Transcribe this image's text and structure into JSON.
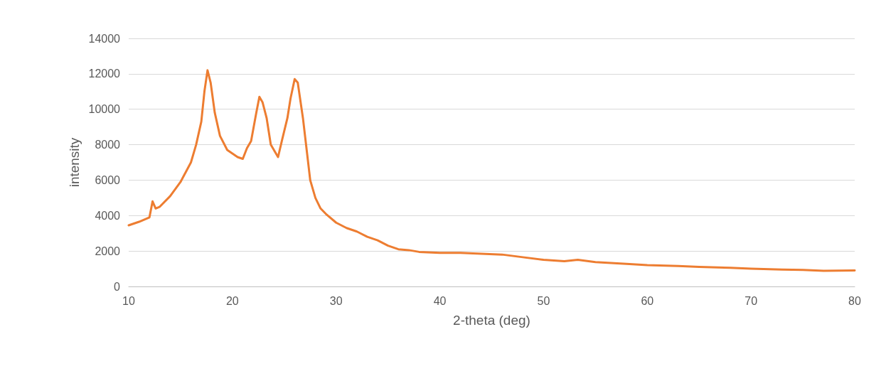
{
  "chart_data": {
    "type": "line",
    "xlabel": "2-theta (deg)",
    "ylabel": "intensity",
    "xlim": [
      10,
      80
    ],
    "xticks": [
      10,
      20,
      30,
      40,
      50,
      60,
      70,
      80
    ],
    "ylim": [
      0,
      14000
    ],
    "yticks": [
      0,
      2000,
      4000,
      6000,
      8000,
      10000,
      12000,
      14000
    ],
    "grid": "y",
    "marker": "none",
    "line_style": "solid",
    "series": [
      {
        "color": "#ed7d31",
        "x": [
          10,
          11,
          12,
          12.3,
          12.6,
          13,
          14,
          15,
          16,
          16.5,
          17,
          17.3,
          17.6,
          17.9,
          18.3,
          18.8,
          19.5,
          20.5,
          21,
          21.4,
          21.8,
          22.3,
          22.6,
          22.9,
          23.3,
          23.7,
          24.1,
          24.4,
          24.8,
          25.3,
          25.6,
          26,
          26.3,
          26.8,
          27.2,
          27.5,
          28,
          28.5,
          29,
          30,
          31,
          32,
          33,
          34,
          35,
          36,
          37,
          38,
          40,
          42,
          44,
          46,
          48,
          50,
          52,
          53.3,
          55,
          58,
          60,
          63,
          65,
          68,
          70,
          73,
          75,
          77,
          80
        ],
        "values": [
          3450,
          3650,
          3900,
          4800,
          4400,
          4500,
          5100,
          5900,
          7000,
          8000,
          9300,
          11000,
          12200,
          11500,
          9800,
          8500,
          7700,
          7300,
          7200,
          7800,
          8200,
          9800,
          10700,
          10400,
          9500,
          8000,
          7600,
          7300,
          8300,
          9500,
          10600,
          11700,
          11500,
          9500,
          7500,
          6000,
          5000,
          4400,
          4100,
          3600,
          3300,
          3100,
          2800,
          2600,
          2300,
          2100,
          2050,
          1950,
          1900,
          1900,
          1850,
          1800,
          1650,
          1500,
          1420,
          1500,
          1370,
          1270,
          1200,
          1150,
          1100,
          1050,
          1000,
          950,
          930,
          880,
          900
        ]
      }
    ]
  }
}
